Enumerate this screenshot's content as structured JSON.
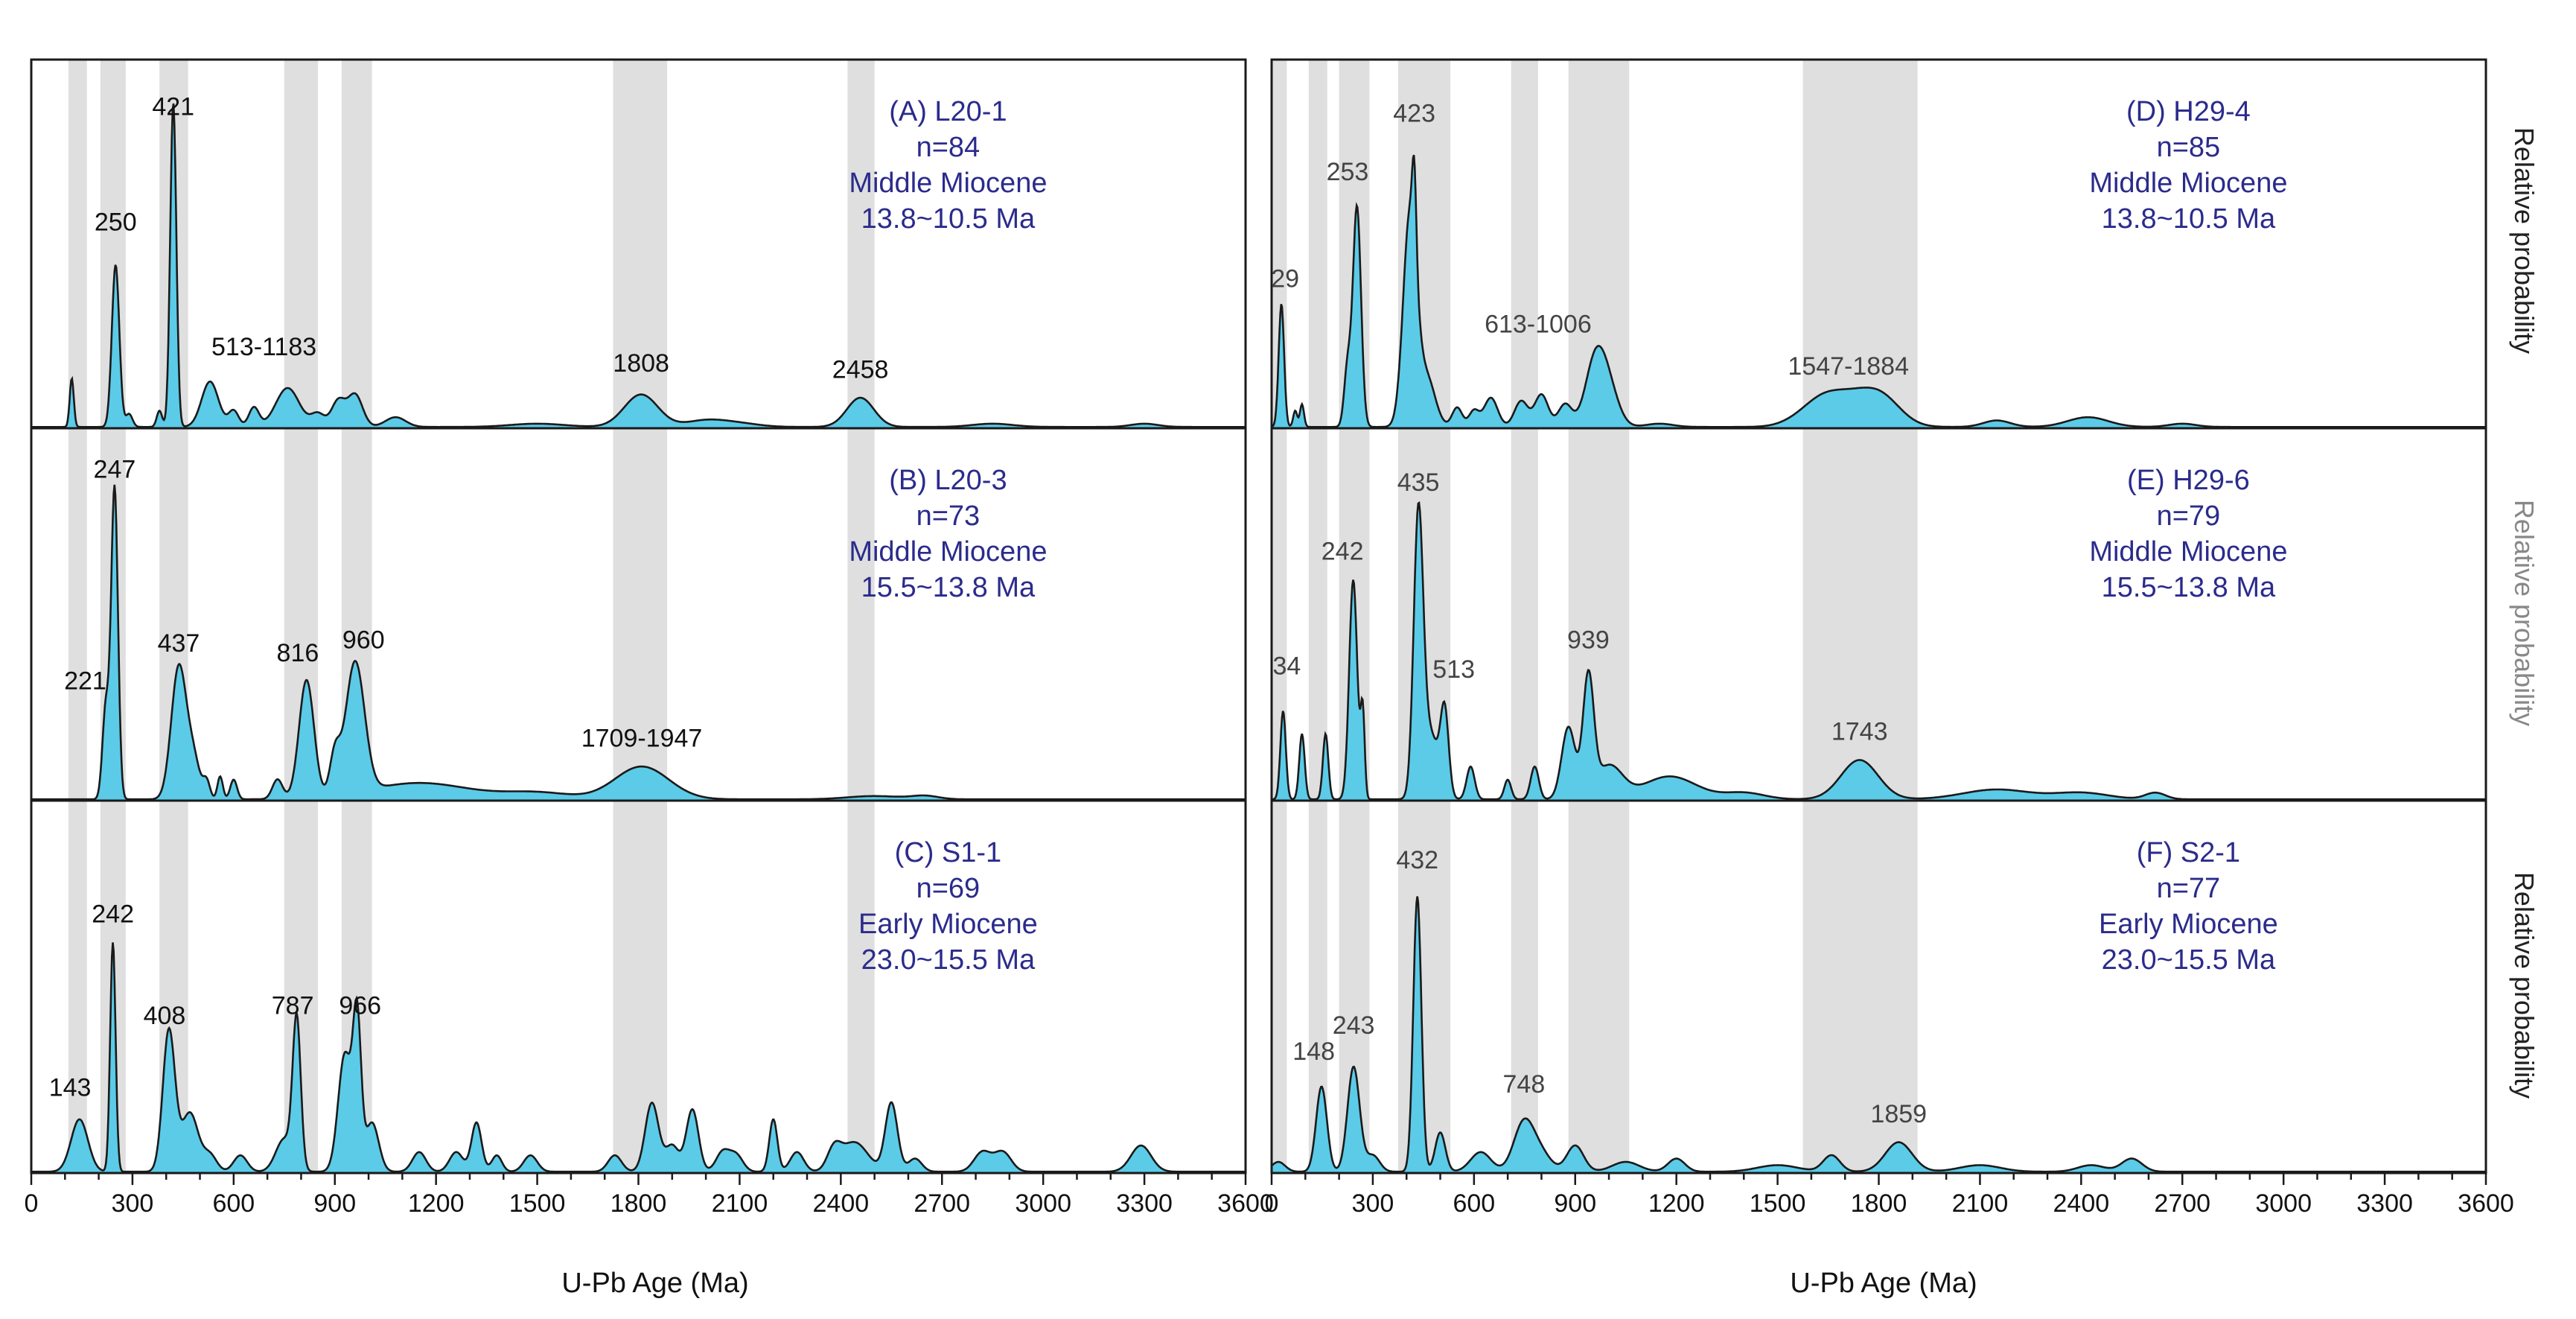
{
  "chart_data": {
    "type": "area",
    "x_axis": {
      "label": "U-Pb Age (Ma)",
      "range": [
        0,
        3600
      ],
      "ticks": [
        0,
        300,
        600,
        900,
        1200,
        1500,
        1800,
        2100,
        2400,
        2700,
        3000,
        3300,
        3600
      ],
      "minor_step": 100
    },
    "y_axis_label": "Relative probability",
    "colors": {
      "fill": "#5bcbe8",
      "line": "#1a1a1a",
      "band": "#d9d9d9",
      "info": "#2b2b8c",
      "frame": "#1a1a1a"
    },
    "left_bands": [
      [
        110,
        165
      ],
      [
        205,
        280
      ],
      [
        380,
        465
      ],
      [
        750,
        850
      ],
      [
        920,
        1010
      ],
      [
        1725,
        1885
      ],
      [
        2420,
        2500
      ]
    ],
    "right_bands": [
      [
        0,
        45
      ],
      [
        110,
        165
      ],
      [
        200,
        290
      ],
      [
        375,
        530
      ],
      [
        710,
        790
      ],
      [
        880,
        1060
      ],
      [
        1575,
        1915
      ]
    ],
    "panels": [
      {
        "id": "A",
        "info": [
          "(A) L20-1",
          "n=84",
          "Middle Miocene",
          "13.8~10.5 Ma"
        ],
        "peaks": [
          {
            "age": 120,
            "h": 0.15,
            "w": 6
          },
          {
            "age": 250,
            "h": 0.5,
            "w": 11
          },
          {
            "age": 290,
            "h": 0.04,
            "w": 10
          },
          {
            "age": 421,
            "h": 1.0,
            "w": 9
          },
          {
            "age": 380,
            "h": 0.05,
            "w": 8
          },
          {
            "age": 530,
            "h": 0.14,
            "w": 25
          },
          {
            "age": 600,
            "h": 0.05,
            "w": 15
          },
          {
            "age": 660,
            "h": 0.06,
            "w": 15
          },
          {
            "age": 760,
            "h": 0.12,
            "w": 35
          },
          {
            "age": 850,
            "h": 0.04,
            "w": 20
          },
          {
            "age": 910,
            "h": 0.08,
            "w": 20
          },
          {
            "age": 960,
            "h": 0.1,
            "w": 22
          },
          {
            "age": 1080,
            "h": 0.03,
            "w": 30
          },
          {
            "age": 1500,
            "h": 0.01,
            "w": 80
          },
          {
            "age": 1808,
            "h": 0.1,
            "w": 50
          },
          {
            "age": 2000,
            "h": 0.02,
            "w": 60
          },
          {
            "age": 2100,
            "h": 0.01,
            "w": 60
          },
          {
            "age": 2458,
            "h": 0.09,
            "w": 40
          },
          {
            "age": 2850,
            "h": 0.01,
            "w": 60
          },
          {
            "age": 3300,
            "h": 0.01,
            "w": 40
          }
        ],
        "labels": [
          {
            "text": "421",
            "age": 421,
            "y": 0.965
          },
          {
            "text": "250",
            "age": 250,
            "y": 0.61
          },
          {
            "text": "513-1183",
            "age": 690,
            "y": 0.225
          },
          {
            "text": "1808",
            "age": 1808,
            "y": 0.175
          },
          {
            "text": "2458",
            "age": 2458,
            "y": 0.155
          }
        ]
      },
      {
        "id": "B",
        "info": [
          "(B) L20-3",
          "n=73",
          "Middle Miocene",
          "15.5~13.8 Ma"
        ],
        "peaks": [
          {
            "age": 221,
            "h": 0.28,
            "w": 10
          },
          {
            "age": 247,
            "h": 0.95,
            "w": 10
          },
          {
            "age": 437,
            "h": 0.4,
            "w": 22
          },
          {
            "age": 480,
            "h": 0.12,
            "w": 20
          },
          {
            "age": 520,
            "h": 0.05,
            "w": 10
          },
          {
            "age": 560,
            "h": 0.07,
            "w": 8
          },
          {
            "age": 600,
            "h": 0.06,
            "w": 10
          },
          {
            "age": 730,
            "h": 0.06,
            "w": 15
          },
          {
            "age": 816,
            "h": 0.36,
            "w": 22
          },
          {
            "age": 900,
            "h": 0.12,
            "w": 15
          },
          {
            "age": 960,
            "h": 0.4,
            "w": 28
          },
          {
            "age": 1150,
            "h": 0.05,
            "w": 150
          },
          {
            "age": 1810,
            "h": 0.1,
            "w": 80
          },
          {
            "age": 1500,
            "h": 0.02,
            "w": 100
          },
          {
            "age": 2500,
            "h": 0.01,
            "w": 80
          },
          {
            "age": 2650,
            "h": 0.01,
            "w": 40
          }
        ],
        "labels": [
          {
            "text": "247",
            "age": 247,
            "y": 0.985
          },
          {
            "text": "221",
            "age": 160,
            "y": 0.34
          },
          {
            "text": "437",
            "age": 437,
            "y": 0.455
          },
          {
            "text": "816",
            "age": 790,
            "y": 0.425
          },
          {
            "text": "960",
            "age": 985,
            "y": 0.465
          },
          {
            "text": "1709-1947",
            "age": 1810,
            "y": 0.165
          }
        ]
      },
      {
        "id": "C",
        "info": [
          "(C) S1-1",
          "n=69",
          "Early Miocene",
          "23.0~15.5 Ma"
        ],
        "peaks": [
          {
            "age": 143,
            "h": 0.16,
            "w": 25
          },
          {
            "age": 242,
            "h": 0.7,
            "w": 8
          },
          {
            "age": 408,
            "h": 0.43,
            "w": 18
          },
          {
            "age": 470,
            "h": 0.18,
            "w": 25
          },
          {
            "age": 530,
            "h": 0.05,
            "w": 20
          },
          {
            "age": 620,
            "h": 0.05,
            "w": 20
          },
          {
            "age": 750,
            "h": 0.1,
            "w": 25
          },
          {
            "age": 787,
            "h": 0.45,
            "w": 12
          },
          {
            "age": 930,
            "h": 0.36,
            "w": 20
          },
          {
            "age": 966,
            "h": 0.44,
            "w": 12
          },
          {
            "age": 1010,
            "h": 0.15,
            "w": 20
          },
          {
            "age": 1150,
            "h": 0.06,
            "w": 20
          },
          {
            "age": 1260,
            "h": 0.06,
            "w": 20
          },
          {
            "age": 1320,
            "h": 0.15,
            "w": 15
          },
          {
            "age": 1380,
            "h": 0.05,
            "w": 15
          },
          {
            "age": 1480,
            "h": 0.05,
            "w": 20
          },
          {
            "age": 1730,
            "h": 0.05,
            "w": 20
          },
          {
            "age": 1840,
            "h": 0.21,
            "w": 20
          },
          {
            "age": 1900,
            "h": 0.08,
            "w": 20
          },
          {
            "age": 1960,
            "h": 0.19,
            "w": 18
          },
          {
            "age": 2050,
            "h": 0.06,
            "w": 20
          },
          {
            "age": 2090,
            "h": 0.05,
            "w": 20
          },
          {
            "age": 2200,
            "h": 0.16,
            "w": 12
          },
          {
            "age": 2270,
            "h": 0.06,
            "w": 20
          },
          {
            "age": 2380,
            "h": 0.06,
            "w": 20
          },
          {
            "age": 2440,
            "h": 0.09,
            "w": 40
          },
          {
            "age": 2550,
            "h": 0.21,
            "w": 18
          },
          {
            "age": 2620,
            "h": 0.04,
            "w": 20
          },
          {
            "age": 2820,
            "h": 0.06,
            "w": 25
          },
          {
            "age": 2880,
            "h": 0.06,
            "w": 25
          },
          {
            "age": 3290,
            "h": 0.08,
            "w": 30
          }
        ],
        "labels": [
          {
            "text": "242",
            "age": 242,
            "y": 0.765
          },
          {
            "text": "143",
            "age": 115,
            "y": 0.235
          },
          {
            "text": "408",
            "age": 395,
            "y": 0.455
          },
          {
            "text": "787",
            "age": 775,
            "y": 0.485
          },
          {
            "text": "966",
            "age": 975,
            "y": 0.485
          }
        ]
      },
      {
        "id": "D",
        "info": [
          "(D) H29-4",
          "n=85",
          "Middle Miocene",
          "13.8~10.5 Ma"
        ],
        "peaks": [
          {
            "age": 29,
            "h": 0.38,
            "w": 8
          },
          {
            "age": 70,
            "h": 0.05,
            "w": 6
          },
          {
            "age": 90,
            "h": 0.07,
            "w": 6
          },
          {
            "age": 225,
            "h": 0.18,
            "w": 10
          },
          {
            "age": 253,
            "h": 0.68,
            "w": 12
          },
          {
            "age": 410,
            "h": 0.65,
            "w": 20
          },
          {
            "age": 423,
            "h": 0.25,
            "w": 6
          },
          {
            "age": 460,
            "h": 0.15,
            "w": 25
          },
          {
            "age": 550,
            "h": 0.06,
            "w": 15
          },
          {
            "age": 600,
            "h": 0.05,
            "w": 15
          },
          {
            "age": 650,
            "h": 0.09,
            "w": 20
          },
          {
            "age": 740,
            "h": 0.08,
            "w": 20
          },
          {
            "age": 800,
            "h": 0.1,
            "w": 20
          },
          {
            "age": 870,
            "h": 0.07,
            "w": 20
          },
          {
            "age": 960,
            "h": 0.2,
            "w": 30
          },
          {
            "age": 1000,
            "h": 0.1,
            "w": 30
          },
          {
            "age": 1150,
            "h": 0.01,
            "w": 40
          },
          {
            "age": 1550,
            "h": 0.01,
            "w": 50
          },
          {
            "age": 1640,
            "h": 0.09,
            "w": 60
          },
          {
            "age": 1800,
            "h": 0.1,
            "w": 60
          },
          {
            "age": 1720,
            "h": 0.04,
            "w": 50
          },
          {
            "age": 2150,
            "h": 0.02,
            "w": 40
          },
          {
            "age": 2420,
            "h": 0.03,
            "w": 60
          },
          {
            "age": 2700,
            "h": 0.01,
            "w": 40
          }
        ],
        "labels": [
          {
            "text": "423",
            "age": 423,
            "y": 0.945
          },
          {
            "text": "253",
            "age": 225,
            "y": 0.765
          },
          {
            "text": "29",
            "age": 40,
            "y": 0.435
          },
          {
            "text": "613-1006",
            "age": 790,
            "y": 0.295
          },
          {
            "text": "1547-1884",
            "age": 1710,
            "y": 0.165
          }
        ]
      },
      {
        "id": "E",
        "info": [
          "(E) H29-6",
          "n=79",
          "Middle Miocene",
          "15.5~13.8 Ma"
        ],
        "peaks": [
          {
            "age": 34,
            "h": 0.27,
            "w": 8
          },
          {
            "age": 90,
            "h": 0.2,
            "w": 8
          },
          {
            "age": 160,
            "h": 0.2,
            "w": 8
          },
          {
            "age": 242,
            "h": 0.67,
            "w": 12
          },
          {
            "age": 270,
            "h": 0.26,
            "w": 6
          },
          {
            "age": 435,
            "h": 0.83,
            "w": 14
          },
          {
            "age": 470,
            "h": 0.2,
            "w": 25
          },
          {
            "age": 513,
            "h": 0.25,
            "w": 12
          },
          {
            "age": 590,
            "h": 0.1,
            "w": 12
          },
          {
            "age": 700,
            "h": 0.06,
            "w": 10
          },
          {
            "age": 780,
            "h": 0.1,
            "w": 12
          },
          {
            "age": 880,
            "h": 0.22,
            "w": 20
          },
          {
            "age": 939,
            "h": 0.36,
            "w": 16
          },
          {
            "age": 1000,
            "h": 0.1,
            "w": 40
          },
          {
            "age": 1180,
            "h": 0.07,
            "w": 80
          },
          {
            "age": 1400,
            "h": 0.02,
            "w": 60
          },
          {
            "age": 1743,
            "h": 0.12,
            "w": 55
          },
          {
            "age": 2150,
            "h": 0.03,
            "w": 100
          },
          {
            "age": 2400,
            "h": 0.02,
            "w": 80
          },
          {
            "age": 2620,
            "h": 0.02,
            "w": 30
          }
        ],
        "labels": [
          {
            "text": "435",
            "age": 435,
            "y": 0.945
          },
          {
            "text": "242",
            "age": 210,
            "y": 0.735
          },
          {
            "text": "34",
            "age": 45,
            "y": 0.385
          },
          {
            "text": "513",
            "age": 540,
            "y": 0.375
          },
          {
            "text": "939",
            "age": 939,
            "y": 0.465
          },
          {
            "text": "1743",
            "age": 1743,
            "y": 0.185
          }
        ]
      },
      {
        "id": "F",
        "info": [
          "(F) S2-1",
          "n=77",
          "Early Miocene",
          "23.0~15.5 Ma"
        ],
        "peaks": [
          {
            "age": 20,
            "h": 0.03,
            "w": 20
          },
          {
            "age": 148,
            "h": 0.26,
            "w": 16
          },
          {
            "age": 243,
            "h": 0.32,
            "w": 18
          },
          {
            "age": 300,
            "h": 0.05,
            "w": 20
          },
          {
            "age": 432,
            "h": 0.84,
            "w": 12
          },
          {
            "age": 500,
            "h": 0.12,
            "w": 15
          },
          {
            "age": 620,
            "h": 0.06,
            "w": 30
          },
          {
            "age": 748,
            "h": 0.15,
            "w": 30
          },
          {
            "age": 800,
            "h": 0.05,
            "w": 30
          },
          {
            "age": 900,
            "h": 0.08,
            "w": 25
          },
          {
            "age": 1050,
            "h": 0.03,
            "w": 40
          },
          {
            "age": 1200,
            "h": 0.04,
            "w": 25
          },
          {
            "age": 1500,
            "h": 0.02,
            "w": 60
          },
          {
            "age": 1660,
            "h": 0.05,
            "w": 25
          },
          {
            "age": 1859,
            "h": 0.09,
            "w": 40
          },
          {
            "age": 2100,
            "h": 0.02,
            "w": 60
          },
          {
            "age": 2430,
            "h": 0.02,
            "w": 40
          },
          {
            "age": 2550,
            "h": 0.04,
            "w": 30
          }
        ],
        "labels": [
          {
            "text": "432",
            "age": 432,
            "y": 0.93
          },
          {
            "text": "148",
            "age": 125,
            "y": 0.345
          },
          {
            "text": "243",
            "age": 243,
            "y": 0.425
          },
          {
            "text": "748",
            "age": 748,
            "y": 0.245
          },
          {
            "text": "1859",
            "age": 1859,
            "y": 0.155
          }
        ]
      }
    ]
  }
}
